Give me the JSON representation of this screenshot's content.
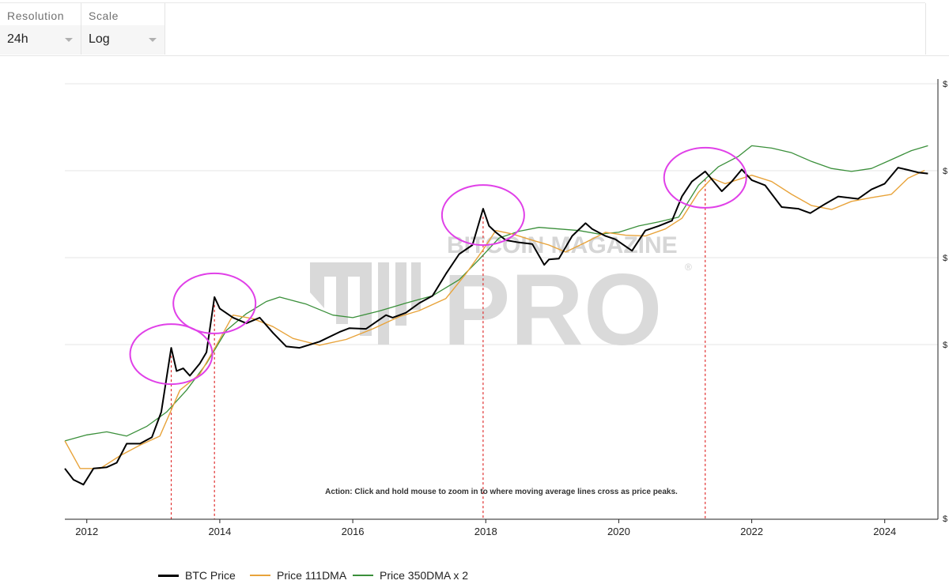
{
  "controls": {
    "resolution": {
      "label": "Resolution",
      "value": "24h"
    },
    "scale": {
      "label": "Scale",
      "value": "Log"
    }
  },
  "watermark": {
    "line1": "BITCOIN MAGAZINE",
    "line2": "PRO",
    "mark": "®"
  },
  "annotation": "Action: Click and hold mouse to zoom in to where moving average lines cross as price peaks.",
  "chart_data": {
    "type": "line",
    "scale": "log",
    "grid": true,
    "legend_position": "bottom",
    "x_ticks": [
      "2012",
      "2014",
      "2016",
      "2018",
      "2020",
      "2022",
      "2024"
    ],
    "y_ticks": [
      "$",
      "$",
      "$",
      "$",
      "$"
    ],
    "series": [
      {
        "name": "BTC Price",
        "color": "#000000",
        "x": [
          2011.67,
          2011.8,
          2011.95,
          2012.1,
          2012.3,
          2012.45,
          2012.6,
          2012.8,
          2012.98,
          2013.12,
          2013.27,
          2013.35,
          2013.45,
          2013.55,
          2013.7,
          2013.8,
          2013.92,
          2014.0,
          2014.2,
          2014.4,
          2014.6,
          2014.8,
          2015.0,
          2015.2,
          2015.5,
          2015.8,
          2015.95,
          2016.2,
          2016.5,
          2016.6,
          2016.8,
          2017.0,
          2017.2,
          2017.4,
          2017.6,
          2017.8,
          2017.96,
          2018.05,
          2018.15,
          2018.3,
          2018.5,
          2018.7,
          2018.88,
          2018.95,
          2019.1,
          2019.3,
          2019.5,
          2019.6,
          2019.8,
          2019.95,
          2020.2,
          2020.4,
          2020.6,
          2020.8,
          2020.95,
          2021.1,
          2021.3,
          2021.55,
          2021.7,
          2021.85,
          2022.0,
          2022.2,
          2022.45,
          2022.7,
          2022.88,
          2023.1,
          2023.3,
          2023.6,
          2023.8,
          2024.0,
          2024.2,
          2024.35,
          2024.5,
          2024.65
        ],
        "y": [
          5,
          3.5,
          3,
          5,
          5.2,
          6,
          11,
          11,
          13.5,
          30,
          230,
          110,
          120,
          95,
          140,
          200,
          1150,
          800,
          600,
          500,
          600,
          370,
          240,
          230,
          280,
          380,
          430,
          420,
          650,
          600,
          700,
          950,
          1200,
          2400,
          4500,
          6000,
          19000,
          11000,
          9000,
          7000,
          6500,
          6200,
          3200,
          3800,
          3900,
          8000,
          12000,
          10000,
          8000,
          7200,
          5000,
          9500,
          11000,
          13000,
          28000,
          45000,
          62000,
          33000,
          45000,
          66000,
          47000,
          40000,
          20000,
          19000,
          16500,
          22000,
          28000,
          26000,
          35000,
          42000,
          70000,
          65000,
          60000,
          58000
        ]
      },
      {
        "name": "Price 111DMA",
        "color": "#e8a33a",
        "x": [
          2011.67,
          2011.9,
          2012.2,
          2012.5,
          2012.8,
          2013.1,
          2013.4,
          2013.7,
          2013.95,
          2014.2,
          2014.5,
          2014.8,
          2015.1,
          2015.5,
          2015.9,
          2016.3,
          2016.7,
          2017.0,
          2017.4,
          2017.7,
          2017.95,
          2018.15,
          2018.4,
          2018.7,
          2018.95,
          2019.2,
          2019.5,
          2019.8,
          2020.1,
          2020.4,
          2020.7,
          2020.95,
          2021.2,
          2021.4,
          2021.6,
          2021.8,
          2022.0,
          2022.3,
          2022.6,
          2022.9,
          2023.2,
          2023.5,
          2023.8,
          2024.1,
          2024.35,
          2024.6
        ],
        "y": [
          12,
          5,
          5,
          7.5,
          10.5,
          14,
          60,
          100,
          250,
          650,
          580,
          450,
          310,
          250,
          300,
          420,
          620,
          750,
          1100,
          2400,
          5000,
          9500,
          8500,
          7000,
          6000,
          4800,
          6500,
          9000,
          8200,
          8000,
          10000,
          14000,
          32000,
          50000,
          42000,
          48000,
          55000,
          45000,
          30000,
          21000,
          18500,
          24000,
          27000,
          30000,
          50000,
          64000
        ]
      },
      {
        "name": "Price 350DMA x 2",
        "color": "#3a8f3a",
        "x": [
          2011.67,
          2012.0,
          2012.3,
          2012.6,
          2012.9,
          2013.2,
          2013.5,
          2013.8,
          2014.1,
          2014.4,
          2014.7,
          2014.9,
          2015.3,
          2015.7,
          2016.0,
          2016.4,
          2016.8,
          2017.2,
          2017.6,
          2017.9,
          2018.2,
          2018.5,
          2018.8,
          2019.1,
          2019.4,
          2019.7,
          2020.0,
          2020.3,
          2020.6,
          2020.9,
          2021.2,
          2021.5,
          2021.8,
          2022.0,
          2022.3,
          2022.6,
          2022.9,
          2023.2,
          2023.5,
          2023.8,
          2024.1,
          2024.4,
          2024.65
        ],
        "y": [
          12,
          14.5,
          16,
          14,
          19,
          30,
          60,
          140,
          400,
          680,
          1000,
          1150,
          920,
          650,
          600,
          740,
          950,
          1200,
          2000,
          3800,
          7500,
          9300,
          10500,
          10000,
          9500,
          8500,
          9000,
          11000,
          12500,
          14500,
          40000,
          72000,
          100000,
          140000,
          130000,
          112000,
          85000,
          68000,
          62000,
          68000,
          90000,
          120000,
          140000
        ]
      }
    ]
  },
  "legend": [
    {
      "label": "BTC Price",
      "color": "#000000"
    },
    {
      "label": "Price 111DMA",
      "color": "#e8a33a"
    },
    {
      "label": "Price 350DMA x 2",
      "color": "#3a8f3a"
    }
  ]
}
